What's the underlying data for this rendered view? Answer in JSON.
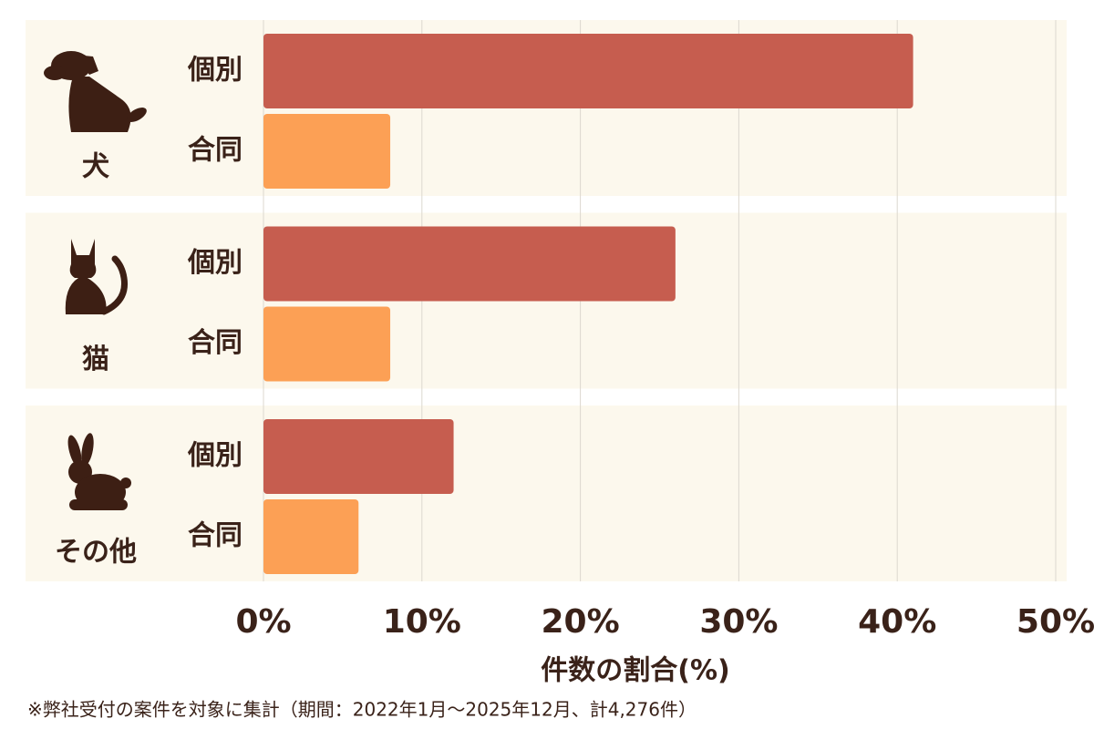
{
  "chart_data": {
    "type": "bar",
    "orientation": "horizontal",
    "categories": [
      "犬",
      "猫",
      "その他"
    ],
    "series": [
      {
        "name": "個別",
        "color": "#c65d4f",
        "values": [
          41,
          26,
          12
        ]
      },
      {
        "name": "合同",
        "color": "#fca055",
        "values": [
          8,
          8,
          6
        ]
      }
    ],
    "xlim": [
      0,
      50
    ],
    "xticks": [
      {
        "value": 0,
        "label": "0%"
      },
      {
        "value": 10,
        "label": "10%"
      },
      {
        "value": 20,
        "label": "20%"
      },
      {
        "value": 30,
        "label": "30%"
      },
      {
        "value": 40,
        "label": "40%"
      },
      {
        "value": 50,
        "label": "50%"
      }
    ],
    "xlabel": "件数の割合(%)",
    "grid": true,
    "note": "※弊社受付の案件を対象に集計（期間：2022年1月～2025年12月、計4,276件）"
  }
}
